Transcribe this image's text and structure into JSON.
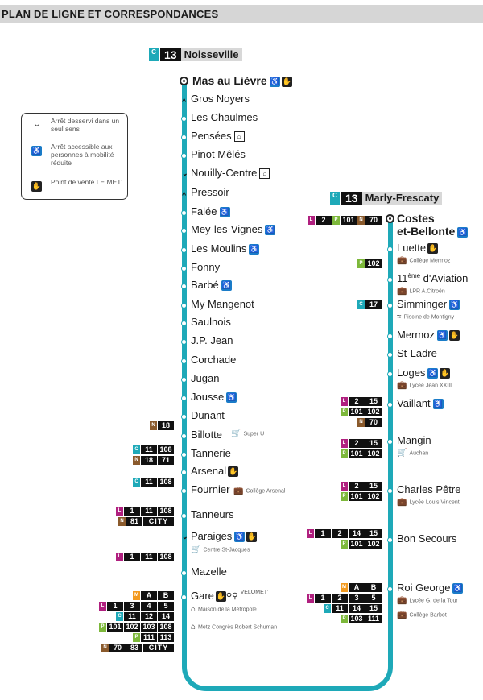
{
  "header": {
    "title": "PLAN DE LIGNE ET CORRESPONDANCES"
  },
  "colors": {
    "line": "#1ea9b8",
    "lianes": "#b0207f",
    "citeis": "#1ea9b8",
    "proxis": "#7db83b",
    "navettes": "#8a5a2c",
    "mettis": "#f39a1f",
    "accessible": "#1a7cc8"
  },
  "line_number": "13",
  "terminus_left": {
    "mode": "C",
    "name": "Noisseville"
  },
  "terminus_right": {
    "mode": "C",
    "name": "Marly-Frescaty"
  },
  "legend": {
    "one_way": {
      "icon": "chevron-down",
      "text": "Arrêt desservi dans un seul sens"
    },
    "accessible": {
      "icon": "wheelchair",
      "text": "Arrêt accessible aux personnes à mobilité réduite"
    },
    "sale_point": {
      "icon": "sale-point",
      "text": "Point de vente LE MET'"
    }
  },
  "left_stops": [
    {
      "name": "Mas au Lièvre"
    },
    {
      "name": "Gros Noyers"
    },
    {
      "name": "Les Chaulmes"
    },
    {
      "name": "Pensées"
    },
    {
      "name": "Pinot Mêlés"
    },
    {
      "name": "Nouilly-Centre"
    },
    {
      "name": "Pressoir"
    },
    {
      "name": "Falée"
    },
    {
      "name": "Mey-les-Vignes"
    },
    {
      "name": "Les Moulins"
    },
    {
      "name": "Fonny"
    },
    {
      "name": "Barbé"
    },
    {
      "name": "My Mangenot"
    },
    {
      "name": "Saulnois"
    },
    {
      "name": "J.P. Jean"
    },
    {
      "name": "Corchade"
    },
    {
      "name": "Jugan"
    },
    {
      "name": "Jousse"
    },
    {
      "name": "Dunant"
    },
    {
      "name": "Billotte",
      "poi": "Super U"
    },
    {
      "name": "Tannerie"
    },
    {
      "name": "Arsenal"
    },
    {
      "name": "Fournier",
      "poi": "Collège Arsenal"
    },
    {
      "name": "Tanneurs"
    },
    {
      "name": "Paraiges",
      "poi": "Centre St-Jacques"
    },
    {
      "name": "Mazelle"
    },
    {
      "name": "Gare",
      "extra": "VELOMET'",
      "poi": "Maison de la Métropole",
      "poi2": "Metz Congrès Robert Schuman"
    }
  ],
  "right_stops": [
    {
      "name": "Costes",
      "name2": "et-Bellonte"
    },
    {
      "name": "Luette",
      "poi": "Collège Mermoz"
    },
    {
      "name": "11",
      "sup": "ème",
      "rest": " d'Aviation",
      "poi": "LPR A.Citroën"
    },
    {
      "name": "Simminger",
      "poi": "Piscine de Montigny"
    },
    {
      "name": "Mermoz"
    },
    {
      "name": "St-Ladre"
    },
    {
      "name": "Loges",
      "poi": "Lycée Jean XXIII"
    },
    {
      "name": "Vaillant"
    },
    {
      "name": "Mangin",
      "poi": "Auchan"
    },
    {
      "name": "Charles Pêtre",
      "poi": "Lycée Louis Vincent"
    },
    {
      "name": "Bon Secours"
    },
    {
      "name": "Roi George",
      "poi": "Lycée G. de la Tour",
      "poi2": "Collège Barbot"
    }
  ],
  "connections": {
    "costes": [
      "L 2",
      "P 101",
      "N 70"
    ],
    "luette": [
      "P 102"
    ],
    "simminger": [
      "C 17"
    ],
    "vaillant": [
      [
        "L",
        "2",
        "15"
      ],
      [
        "P",
        "101",
        "102"
      ],
      [
        "N",
        "70"
      ]
    ],
    "mangin": [
      [
        "L",
        "2",
        "15"
      ],
      [
        "P",
        "101",
        "102"
      ]
    ],
    "charles": [
      [
        "L",
        "2",
        "15"
      ],
      [
        "P",
        "101",
        "102"
      ]
    ],
    "bonsecours": [
      [
        "L",
        "1",
        "2",
        "14",
        "15"
      ],
      [
        "P",
        "101",
        "102"
      ]
    ],
    "roigeorge": [
      [
        "M",
        "A",
        "B"
      ],
      [
        "L",
        "1",
        "2",
        "3",
        "5"
      ],
      [
        "C",
        "11",
        "14",
        "15"
      ],
      [
        "P",
        "103",
        "111"
      ]
    ],
    "dunant": [
      [
        "N",
        "18"
      ]
    ],
    "tannerie": [
      [
        "C",
        "11",
        "108"
      ],
      [
        "N",
        "18",
        "71"
      ]
    ],
    "fournier": [
      [
        "C",
        "11",
        "108"
      ]
    ],
    "tanneurs": [
      [
        "L",
        "1",
        "11",
        "108"
      ],
      [
        "N",
        "81",
        "CITY"
      ]
    ],
    "paraiges": [
      [
        "L",
        "1",
        "11",
        "108"
      ]
    ],
    "gare": [
      [
        "M",
        "A",
        "B"
      ],
      [
        "L",
        "1",
        "3",
        "4",
        "5"
      ],
      [
        "C",
        "11",
        "12",
        "14"
      ],
      [
        "P",
        "101",
        "102",
        "103",
        "108"
      ],
      [
        "P",
        "111",
        "113"
      ],
      [
        "N",
        "70",
        "83",
        "CITY"
      ]
    ]
  }
}
